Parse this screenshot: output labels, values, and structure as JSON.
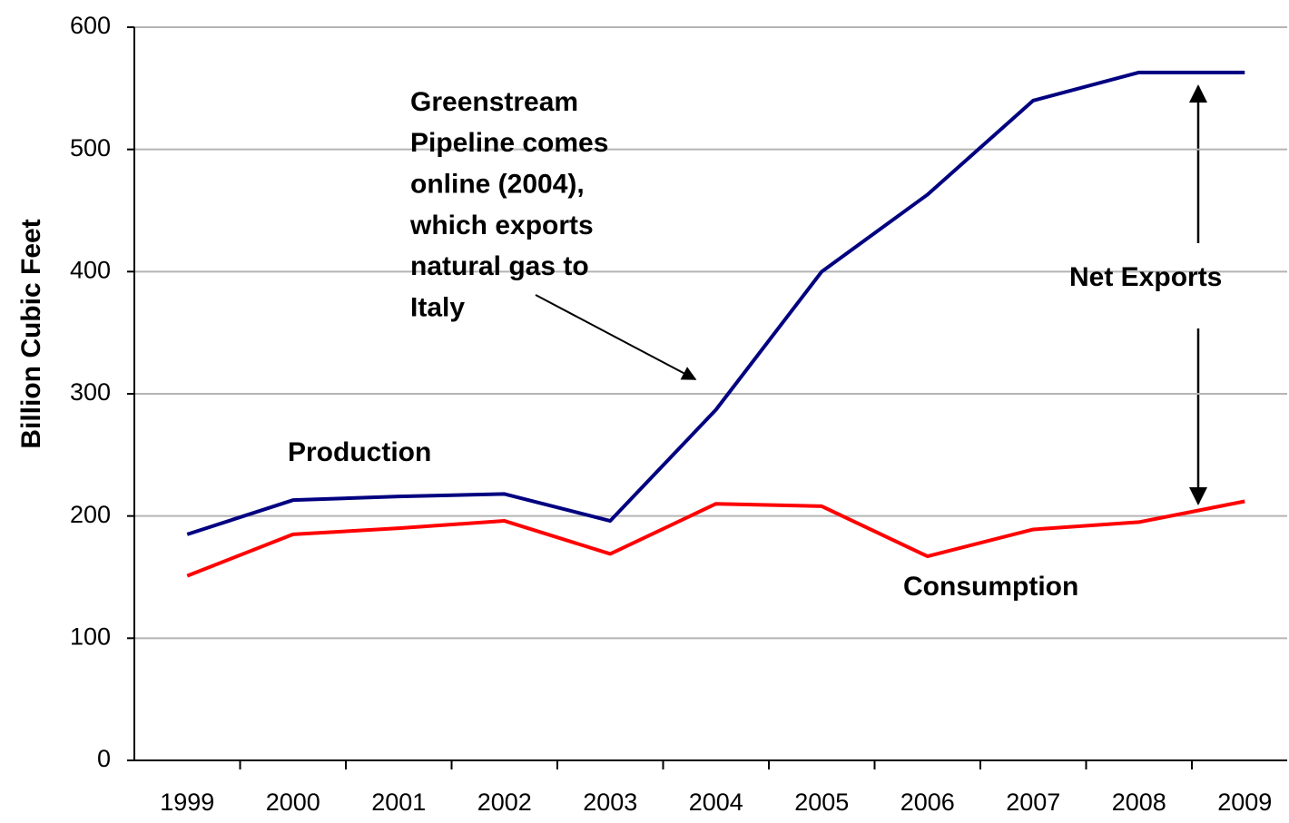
{
  "chart_data": {
    "type": "line",
    "y_label": "Billion Cubic Feet",
    "categories": [
      "1999",
      "2000",
      "2001",
      "2002",
      "2003",
      "2004",
      "2005",
      "2006",
      "2007",
      "2008",
      "2009"
    ],
    "series": [
      {
        "name": "Production",
        "color": "#000080",
        "values": [
          185,
          213,
          216,
          218,
          196,
          287,
          400,
          463,
          540,
          563,
          563
        ]
      },
      {
        "name": "Consumption",
        "color": "#ff0000",
        "values": [
          151,
          185,
          190,
          196,
          169,
          210,
          208,
          167,
          189,
          195,
          212
        ]
      }
    ],
    "annotations": [
      {
        "lines": [
          "Greenstream",
          "Pipeline comes",
          "online (2004),",
          "which exports",
          "natural gas to",
          "Italy"
        ]
      },
      {
        "lines": [
          "Net Exports"
        ]
      }
    ],
    "ylim": [
      0,
      600
    ],
    "yticks": [
      0,
      100,
      200,
      300,
      400,
      500,
      600
    ],
    "grid": true
  }
}
